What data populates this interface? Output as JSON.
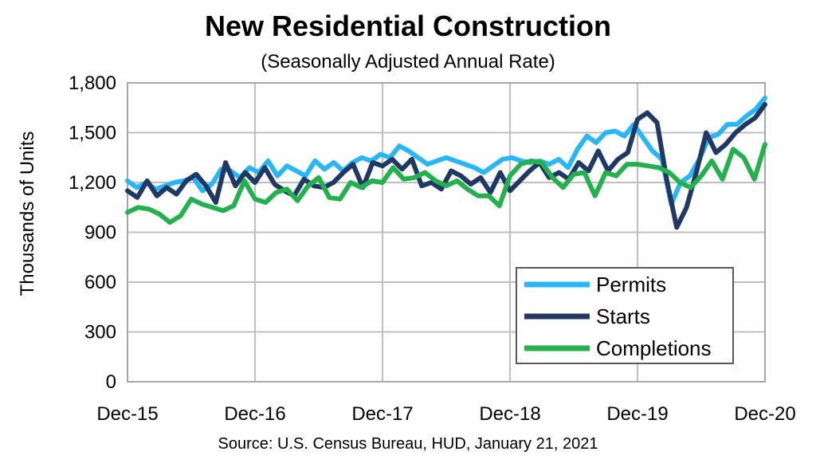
{
  "chart_data": {
    "type": "line",
    "title": "New Residential Construction",
    "subtitle": "(Seasonally Adjusted Annual Rate)",
    "ylabel": "Thousands of Units",
    "xlabel": "",
    "source": "Source:  U.S. Census Bureau, HUD, January 21, 2021",
    "ylim": [
      0,
      1800
    ],
    "yticks": [
      "0",
      "300",
      "600",
      "900",
      "1,200",
      "1,500",
      "1,800"
    ],
    "xticks": [
      "Dec-15",
      "Dec-16",
      "Dec-17",
      "Dec-18",
      "Dec-19",
      "Dec-20"
    ],
    "grid": true,
    "legend_position": "bottom-right",
    "series": [
      {
        "name": "Permits",
        "color": "#29b6f6",
        "values": [
          1210,
          1170,
          1200,
          1160,
          1180,
          1200,
          1210,
          1230,
          1150,
          1190,
          1280,
          1270,
          1230,
          1290,
          1260,
          1330,
          1240,
          1300,
          1270,
          1240,
          1330,
          1280,
          1320,
          1270,
          1320,
          1350,
          1330,
          1370,
          1350,
          1420,
          1390,
          1350,
          1310,
          1330,
          1350,
          1330,
          1310,
          1290,
          1260,
          1300,
          1340,
          1350,
          1330,
          1320,
          1330,
          1310,
          1340,
          1290,
          1400,
          1480,
          1440,
          1500,
          1510,
          1480,
          1550,
          1470,
          1390,
          1340,
          1070,
          1200,
          1240,
          1340,
          1470,
          1490,
          1550,
          1550,
          1600,
          1640,
          1710
        ]
      },
      {
        "name": "Starts",
        "color": "#1f3864",
        "values": [
          1150,
          1110,
          1210,
          1120,
          1170,
          1130,
          1210,
          1250,
          1180,
          1080,
          1320,
          1180,
          1260,
          1200,
          1290,
          1190,
          1150,
          1120,
          1220,
          1180,
          1170,
          1200,
          1260,
          1310,
          1170,
          1320,
          1300,
          1340,
          1280,
          1340,
          1180,
          1200,
          1160,
          1270,
          1240,
          1190,
          1230,
          1140,
          1260,
          1150,
          1210,
          1270,
          1320,
          1230,
          1260,
          1220,
          1320,
          1270,
          1390,
          1270,
          1340,
          1380,
          1580,
          1620,
          1560,
          1210,
          930,
          1050,
          1260,
          1500,
          1380,
          1430,
          1500,
          1550,
          1590,
          1670
        ]
      },
      {
        "name": "Completions",
        "color": "#22b14c",
        "values": [
          1020,
          1050,
          1040,
          1010,
          960,
          1000,
          1100,
          1070,
          1050,
          1030,
          1060,
          1210,
          1100,
          1080,
          1140,
          1160,
          1090,
          1180,
          1230,
          1110,
          1100,
          1200,
          1170,
          1210,
          1200,
          1290,
          1220,
          1230,
          1260,
          1210,
          1180,
          1210,
          1160,
          1120,
          1120,
          1060,
          1240,
          1310,
          1330,
          1320,
          1230,
          1170,
          1250,
          1260,
          1120,
          1260,
          1240,
          1310,
          1310,
          1300,
          1290,
          1260,
          1200,
          1170,
          1240,
          1330,
          1220,
          1400,
          1350,
          1220,
          1430
        ]
      }
    ]
  }
}
